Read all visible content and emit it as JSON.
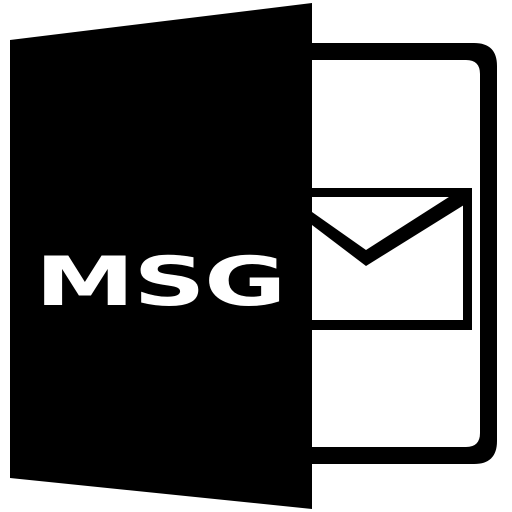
{
  "file_icon": {
    "extension_label": "MSG",
    "icon_name": "msg-file-open-icon",
    "envelope_icon_name": "envelope-icon",
    "foreground_color": "#000000",
    "background_color": "#ffffff"
  }
}
